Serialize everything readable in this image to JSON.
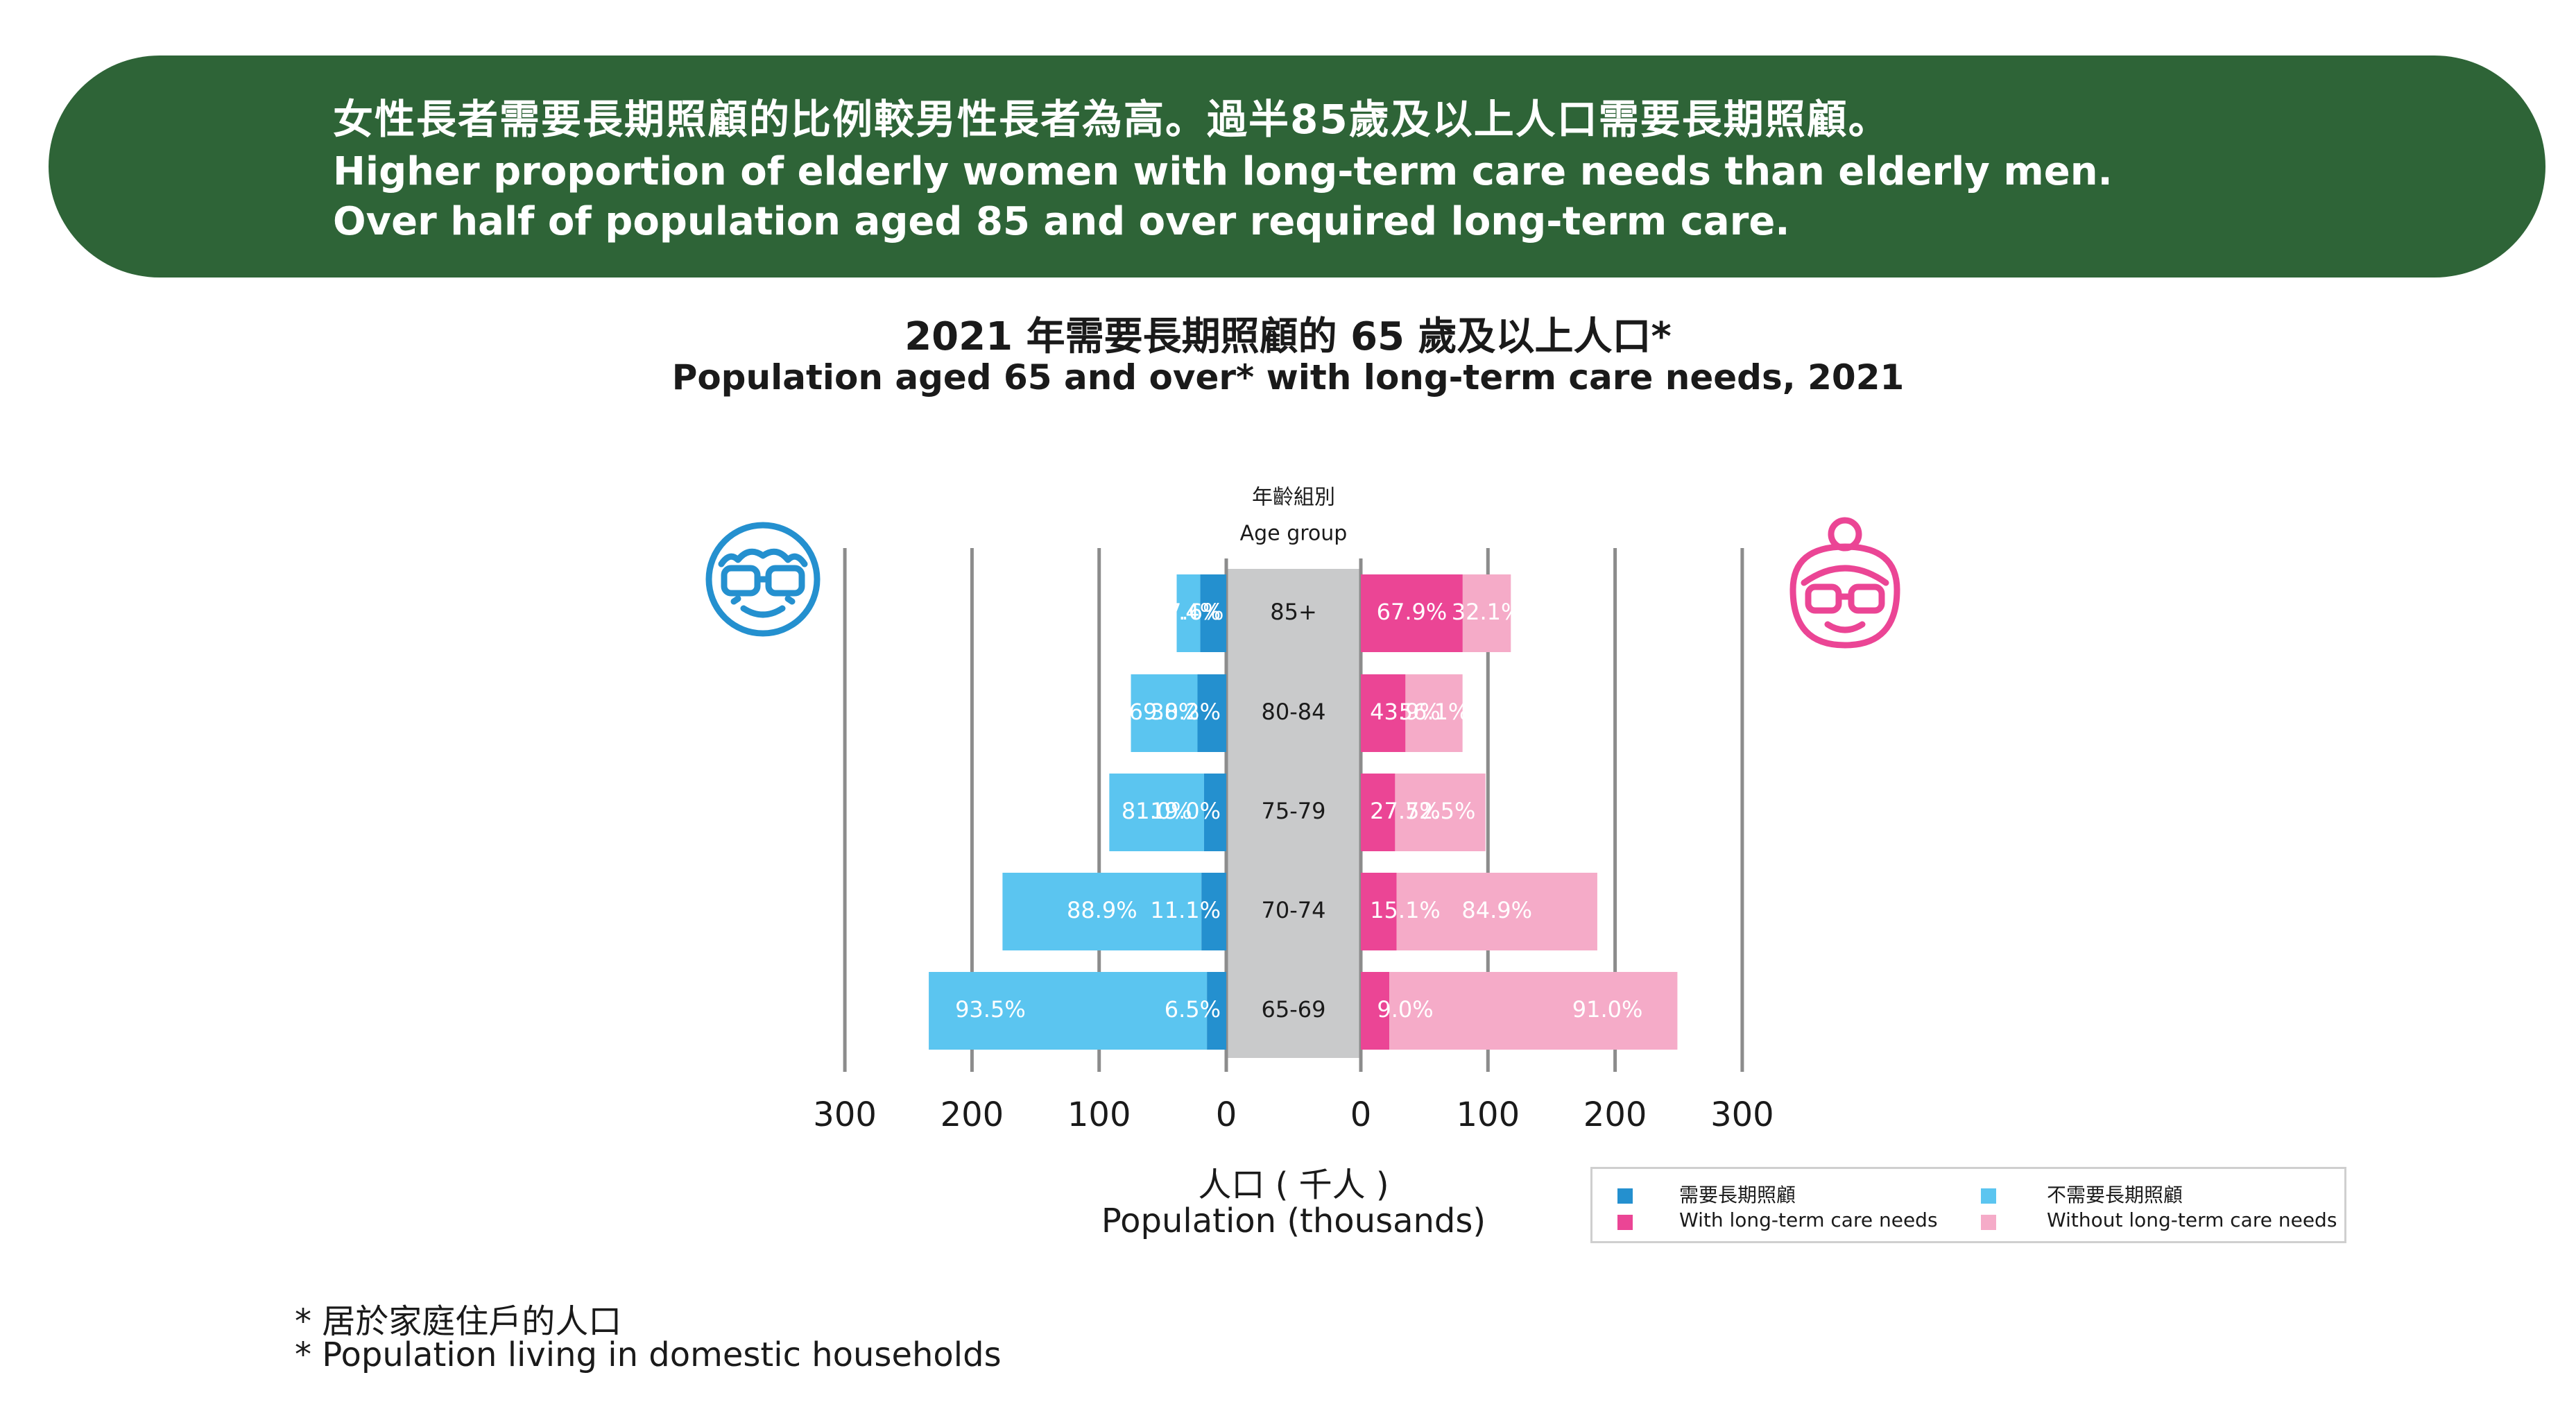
{
  "banner": {
    "zh": "女性長者需要長期照顧的比例較男性長者為高。過半85歲及以上人口需要長期照顧。",
    "en1": "Higher proportion of elderly women with long-term care needs than elderly men.",
    "en2": "Over half of population aged 85 and over required long-term care."
  },
  "title": {
    "zh": "2021 年需要長期照顧的 65 歲及以上人口*",
    "en": "Population aged 65 and over* with long-term care needs, 2021"
  },
  "axis": {
    "age_group_zh": "年齡組別",
    "age_group_en": "Age group",
    "xlabel_zh": "人口 ( 千人 )",
    "xlabel_en": "Population (thousands)"
  },
  "legend": {
    "with_zh": "需要長期照顧",
    "with_en": "With long-term care needs",
    "without_zh": "不需要長期照顧",
    "without_en": "Without long-term care needs"
  },
  "footnote": {
    "zh": "* 居於家庭住戶的人口",
    "en": "* Population living in domestic households"
  },
  "icons": {
    "male": "elderly-man-icon",
    "female": "elderly-woman-icon"
  },
  "chart_data": {
    "type": "bar",
    "orientation": "horizontal-population-pyramid",
    "categories": [
      "85+",
      "80-84",
      "75-79",
      "70-74",
      "65-69"
    ],
    "xlim": [
      0,
      300
    ],
    "ticks": [
      0,
      100,
      200,
      300
    ],
    "tick_labels": [
      "0",
      "100",
      "200",
      "300"
    ],
    "colors": {
      "male_with": "#2490cf",
      "male_without": "#5bc5f0",
      "female_with": "#eb4595",
      "female_without": "#f5abc8",
      "center": "#c9cacb"
    },
    "series": [
      {
        "name": "Male",
        "side": "left",
        "totals": [
          39,
          75,
          92,
          176,
          234
        ],
        "with_pct": [
          "52.4%",
          "30.2%",
          "19.0%",
          "11.1%",
          "6.5%"
        ],
        "without_pct": [
          "47.6%",
          "69.8%",
          "81.0%",
          "88.9%",
          "93.5%"
        ],
        "with_share": [
          0.524,
          0.302,
          0.19,
          0.111,
          0.065
        ]
      },
      {
        "name": "Female",
        "side": "right",
        "totals": [
          118,
          80,
          98,
          186,
          249
        ],
        "with_pct": [
          "67.9%",
          "43.9%",
          "27.5%",
          "15.1%",
          "9.0%"
        ],
        "without_pct": [
          "32.1%",
          "56.1%",
          "72.5%",
          "84.9%",
          "91.0%"
        ],
        "with_share": [
          0.679,
          0.439,
          0.275,
          0.151,
          0.09
        ]
      }
    ]
  }
}
